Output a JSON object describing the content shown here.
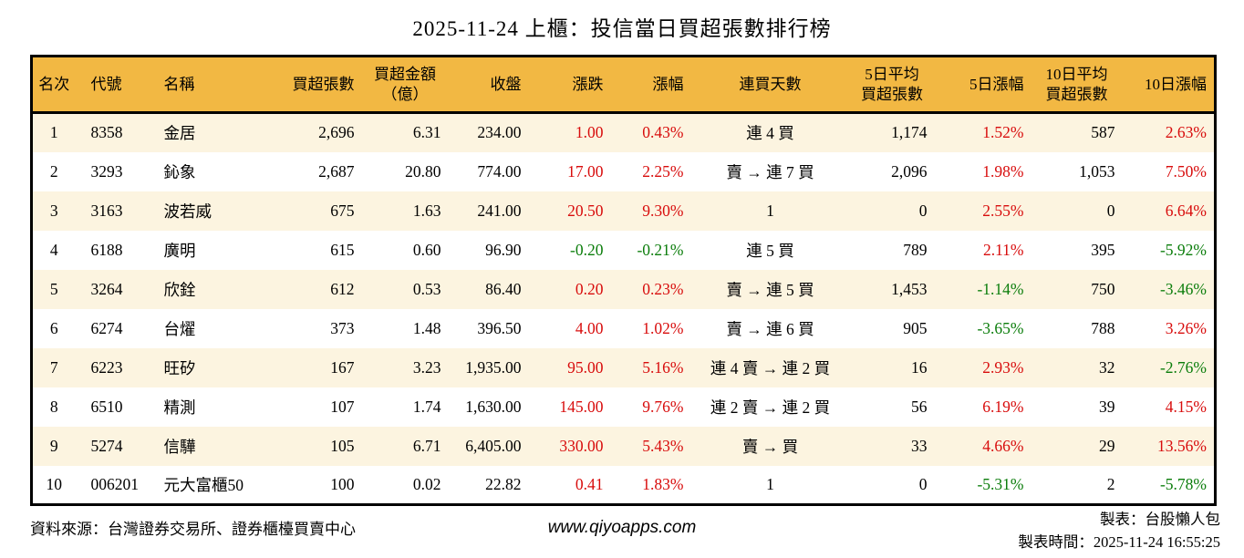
{
  "title": "2025-11-24 上櫃：投信當日買超張數排行榜",
  "colors": {
    "header_bg": "#F2B843",
    "row_alt_bg": "#FCF4E0",
    "up_red": "#D80C0C",
    "down_green": "#0B7D0B",
    "border": "#000000"
  },
  "table": {
    "columns": [
      {
        "id": "rank",
        "label": "名次"
      },
      {
        "id": "code",
        "label": "代號"
      },
      {
        "id": "name",
        "label": "名稱"
      },
      {
        "id": "net_buy",
        "label": "買超張數"
      },
      {
        "id": "amount",
        "label": "買超金額\n（億）"
      },
      {
        "id": "close",
        "label": "收盤"
      },
      {
        "id": "change",
        "label": "漲跌"
      },
      {
        "id": "change_pct",
        "label": "漲幅"
      },
      {
        "id": "streak",
        "label": "連買天數"
      },
      {
        "id": "avg5",
        "label": "5日平均\n買超張數"
      },
      {
        "id": "pct5",
        "label": "5日漲幅"
      },
      {
        "id": "avg10",
        "label": "10日平均\n買超張數"
      },
      {
        "id": "pct10",
        "label": "10日漲幅"
      }
    ],
    "rows": [
      {
        "rank": "1",
        "code": "8358",
        "name": "金居",
        "net_buy": "2,696",
        "amount": "6.31",
        "close": "234.00",
        "change": "1.00",
        "change_pct": "0.43%",
        "streak": "連 4 買",
        "avg5": "1,174",
        "pct5": "1.52%",
        "avg10": "587",
        "pct10": "2.63%"
      },
      {
        "rank": "2",
        "code": "3293",
        "name": "鈊象",
        "net_buy": "2,687",
        "amount": "20.80",
        "close": "774.00",
        "change": "17.00",
        "change_pct": "2.25%",
        "streak": "賣 → 連 7 買",
        "avg5": "2,096",
        "pct5": "1.98%",
        "avg10": "1,053",
        "pct10": "7.50%"
      },
      {
        "rank": "3",
        "code": "3163",
        "name": "波若威",
        "net_buy": "675",
        "amount": "1.63",
        "close": "241.00",
        "change": "20.50",
        "change_pct": "9.30%",
        "streak": "1",
        "avg5": "0",
        "pct5": "2.55%",
        "avg10": "0",
        "pct10": "6.64%"
      },
      {
        "rank": "4",
        "code": "6188",
        "name": "廣明",
        "net_buy": "615",
        "amount": "0.60",
        "close": "96.90",
        "change": "-0.20",
        "change_pct": "-0.21%",
        "streak": "連 5 買",
        "avg5": "789",
        "pct5": "2.11%",
        "avg10": "395",
        "pct10": "-5.92%"
      },
      {
        "rank": "5",
        "code": "3264",
        "name": "欣銓",
        "net_buy": "612",
        "amount": "0.53",
        "close": "86.40",
        "change": "0.20",
        "change_pct": "0.23%",
        "streak": "賣 → 連 5 買",
        "avg5": "1,453",
        "pct5": "-1.14%",
        "avg10": "750",
        "pct10": "-3.46%"
      },
      {
        "rank": "6",
        "code": "6274",
        "name": "台燿",
        "net_buy": "373",
        "amount": "1.48",
        "close": "396.50",
        "change": "4.00",
        "change_pct": "1.02%",
        "streak": "賣 → 連 6 買",
        "avg5": "905",
        "pct5": "-3.65%",
        "avg10": "788",
        "pct10": "3.26%"
      },
      {
        "rank": "7",
        "code": "6223",
        "name": "旺矽",
        "net_buy": "167",
        "amount": "3.23",
        "close": "1,935.00",
        "change": "95.00",
        "change_pct": "5.16%",
        "streak": "連 4 賣 → 連 2 買",
        "avg5": "16",
        "pct5": "2.93%",
        "avg10": "32",
        "pct10": "-2.76%"
      },
      {
        "rank": "8",
        "code": "6510",
        "name": "精測",
        "net_buy": "107",
        "amount": "1.74",
        "close": "1,630.00",
        "change": "145.00",
        "change_pct": "9.76%",
        "streak": "連 2 賣 → 連 2 買",
        "avg5": "56",
        "pct5": "6.19%",
        "avg10": "39",
        "pct10": "4.15%"
      },
      {
        "rank": "9",
        "code": "5274",
        "name": "信驊",
        "net_buy": "105",
        "amount": "6.71",
        "close": "6,405.00",
        "change": "330.00",
        "change_pct": "5.43%",
        "streak": "賣 → 買",
        "avg5": "33",
        "pct5": "4.66%",
        "avg10": "29",
        "pct10": "13.56%"
      },
      {
        "rank": "10",
        "code": "006201",
        "name": "元大富櫃50",
        "net_buy": "100",
        "amount": "0.02",
        "close": "22.82",
        "change": "0.41",
        "change_pct": "1.83%",
        "streak": "1",
        "avg5": "0",
        "pct5": "-5.31%",
        "avg10": "2",
        "pct10": "-5.78%"
      }
    ]
  },
  "footer": {
    "source": "資料來源：台灣證券交易所、證券櫃檯買賣中心",
    "website": "www.qiyoapps.com",
    "author": "製表：台股懶人包",
    "generated": "製表時間：2025-11-24 16:55:25"
  }
}
